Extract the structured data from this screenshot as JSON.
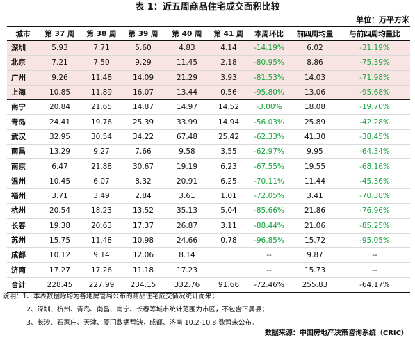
{
  "title": "表 1：近五周商品住宅成交面积比较",
  "unit": "单位：万平方米",
  "headers": [
    "城市",
    "第 37 周",
    "第 38 周",
    "第 39 周",
    "第 40 周",
    "第 41 周",
    "本周环比",
    "前四周均量",
    "与前四周均量比"
  ],
  "rows": [
    {
      "city": "深圳",
      "w37": "5.93",
      "w38": "7.71",
      "w39": "5.60",
      "w40": "4.83",
      "w41": "4.14",
      "wow": "-14.19%",
      "avg4": "6.02",
      "vsavg": "-31.19%"
    },
    {
      "city": "北京",
      "w37": "7.21",
      "w38": "7.50",
      "w39": "9.29",
      "w40": "11.45",
      "w41": "2.18",
      "wow": "-80.95%",
      "avg4": "8.86",
      "vsavg": "-75.39%"
    },
    {
      "city": "广州",
      "w37": "9.26",
      "w38": "11.48",
      "w39": "14.09",
      "w40": "21.29",
      "w41": "3.93",
      "wow": "-81.53%",
      "avg4": "14.03",
      "vsavg": "-71.98%"
    },
    {
      "city": "上海",
      "w37": "10.85",
      "w38": "11.89",
      "w39": "16.07",
      "w40": "13.44",
      "w41": "0.56",
      "wow": "-95.80%",
      "avg4": "13.06",
      "vsavg": "-95.68%"
    },
    {
      "city": "南宁",
      "w37": "20.84",
      "w38": "21.65",
      "w39": "14.87",
      "w40": "14.97",
      "w41": "14.52",
      "wow": "-3.00%",
      "avg4": "18.08",
      "vsavg": "-19.70%"
    },
    {
      "city": "青岛",
      "w37": "24.41",
      "w38": "19.76",
      "w39": "25.39",
      "w40": "33.99",
      "w41": "14.94",
      "wow": "-56.03%",
      "avg4": "25.89",
      "vsavg": "-42.28%"
    },
    {
      "city": "武汉",
      "w37": "32.95",
      "w38": "30.54",
      "w39": "34.22",
      "w40": "67.48",
      "w41": "25.42",
      "wow": "-62.33%",
      "avg4": "41.30",
      "vsavg": "-38.45%"
    },
    {
      "city": "南昌",
      "w37": "13.29",
      "w38": "9.27",
      "w39": "7.66",
      "w40": "9.58",
      "w41": "3.55",
      "wow": "-62.97%",
      "avg4": "9.95",
      "vsavg": "-64.34%"
    },
    {
      "city": "南京",
      "w37": "6.47",
      "w38": "21.88",
      "w39": "30.67",
      "w40": "19.19",
      "w41": "6.23",
      "wow": "-67.55%",
      "avg4": "19.55",
      "vsavg": "-68.16%"
    },
    {
      "city": "温州",
      "w37": "10.45",
      "w38": "6.07",
      "w39": "8.32",
      "w40": "20.91",
      "w41": "6.25",
      "wow": "-70.11%",
      "avg4": "11.44",
      "vsavg": "-45.36%"
    },
    {
      "city": "福州",
      "w37": "3.71",
      "w38": "3.49",
      "w39": "2.84",
      "w40": "3.61",
      "w41": "1.01",
      "wow": "-72.05%",
      "avg4": "3.41",
      "vsavg": "-70.38%"
    },
    {
      "city": "杭州",
      "w37": "20.54",
      "w38": "18.23",
      "w39": "13.52",
      "w40": "35.13",
      "w41": "5.04",
      "wow": "-85.66%",
      "avg4": "21.86",
      "vsavg": "-76.96%"
    },
    {
      "city": "长春",
      "w37": "19.38",
      "w38": "20.63",
      "w39": "17.37",
      "w40": "26.87",
      "w41": "3.11",
      "wow": "-88.44%",
      "avg4": "21.06",
      "vsavg": "-85.25%"
    },
    {
      "city": "苏州",
      "w37": "15.75",
      "w38": "11.48",
      "w39": "10.98",
      "w40": "24.66",
      "w41": "0.78",
      "wow": "-96.85%",
      "avg4": "15.72",
      "vsavg": "-95.05%"
    },
    {
      "city": "成都",
      "w37": "10.12",
      "w38": "9.14",
      "w39": "12.06",
      "w40": "8.14",
      "w41": "",
      "wow": "--",
      "avg4": "9.87",
      "vsavg": "--"
    },
    {
      "city": "济南",
      "w37": "17.27",
      "w38": "17.26",
      "w39": "11.18",
      "w40": "17.23",
      "w41": "",
      "wow": "--",
      "avg4": "15.73",
      "vsavg": "--"
    }
  ],
  "total": {
    "city": "合计",
    "w37": "228.45",
    "w38": "227.99",
    "w39": "234.15",
    "w40": "332.76",
    "w41": "91.66",
    "wow": "-72.46%",
    "avg4": "255.83",
    "vsavg": "-64.17%"
  },
  "notes": [
    "说明：1、本表数据除均为各地房管局公布的商品住宅成交情况统计而来；",
    "2、深圳、杭州、青岛、南昌、南宁、长春等城市统计范围为市区，不包含下属县；",
    "3、长沙、石家庄、天津、厦门数据暂缺，成都、济南 10.2-10.8 数暂未公布。"
  ],
  "source": "数据来源：中国房地产决策咨询系统（CRIC）",
  "colors": {
    "negative": "#11a33a",
    "tier1_background": "#f9e4e4"
  }
}
